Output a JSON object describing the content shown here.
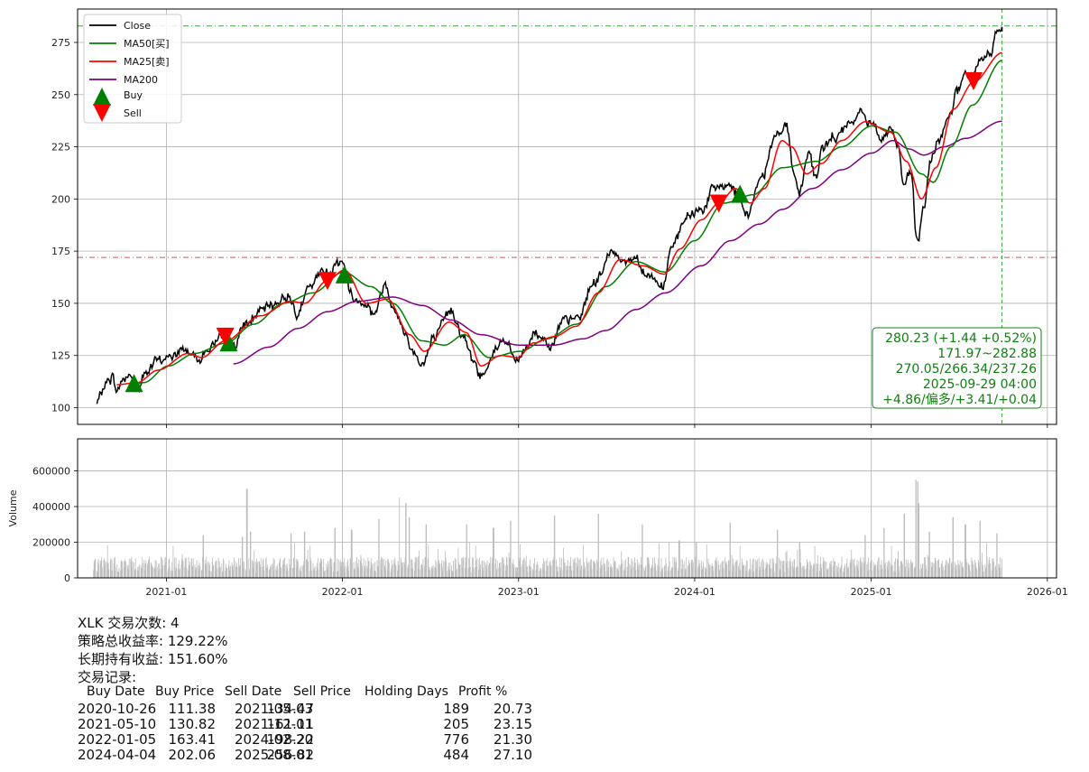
{
  "chart_data": [
    {
      "type": "line",
      "name_panel": "price",
      "x_ticks": [
        "2021-01",
        "2022-01",
        "2023-01",
        "2024-01",
        "2025-01",
        "2026-01"
      ],
      "xlim": [
        "2020-07-01",
        "2026-01-20"
      ],
      "ylim": [
        92,
        291
      ],
      "y_ticks": [
        100,
        125,
        150,
        175,
        200,
        225,
        250,
        275
      ],
      "grid": true,
      "legend_placement": "top-left",
      "legend": [
        "Close",
        "MA50[买]",
        "MA25[卖]",
        "MA200",
        "Buy",
        "Sell"
      ],
      "colors": {
        "close": "#000000",
        "ma50": "#008000",
        "ma25": "#ff0000",
        "ma200": "#800080",
        "buy": "#008000",
        "sell": "#ff0000",
        "hline_high": "#3aa83a",
        "hline_low": "#e05050"
      },
      "hlines": [
        282.88,
        171.97
      ],
      "vline": "2025-09-29",
      "close_anchors": [
        [
          "2020-08-10",
          102
        ],
        [
          "2020-08-25",
          110
        ],
        [
          "2020-09-02",
          113
        ],
        [
          "2020-09-10",
          115
        ],
        [
          "2020-09-22",
          108
        ],
        [
          "2020-10-01",
          113
        ],
        [
          "2020-10-15",
          116
        ],
        [
          "2020-11-02",
          108
        ],
        [
          "2020-11-20",
          117
        ],
        [
          "2020-12-10",
          122
        ],
        [
          "2021-01-05",
          124
        ],
        [
          "2021-02-10",
          128
        ],
        [
          "2021-03-08",
          124
        ],
        [
          "2021-04-10",
          130
        ],
        [
          "2021-05-03",
          134
        ],
        [
          "2021-05-20",
          130
        ],
        [
          "2021-06-15",
          140
        ],
        [
          "2021-07-15",
          146
        ],
        [
          "2021-08-15",
          150
        ],
        [
          "2021-09-08",
          154
        ],
        [
          "2021-09-30",
          146
        ],
        [
          "2021-10-25",
          157
        ],
        [
          "2021-11-20",
          165
        ],
        [
          "2021-12-10",
          166
        ],
        [
          "2021-12-28",
          171
        ],
        [
          "2022-01-25",
          152
        ],
        [
          "2022-02-15",
          151
        ],
        [
          "2022-03-08",
          145
        ],
        [
          "2022-03-30",
          159
        ],
        [
          "2022-04-15",
          150
        ],
        [
          "2022-05-10",
          136
        ],
        [
          "2022-05-25",
          128
        ],
        [
          "2022-06-16",
          121
        ],
        [
          "2022-07-10",
          133
        ],
        [
          "2022-08-15",
          147
        ],
        [
          "2022-09-05",
          136
        ],
        [
          "2022-09-30",
          122
        ],
        [
          "2022-10-13",
          115
        ],
        [
          "2022-11-15",
          128
        ],
        [
          "2022-12-01",
          133
        ],
        [
          "2022-12-28",
          122
        ],
        [
          "2023-01-15",
          128
        ],
        [
          "2023-02-02",
          136
        ],
        [
          "2023-03-10",
          131
        ],
        [
          "2023-04-05",
          141
        ],
        [
          "2023-05-05",
          143
        ],
        [
          "2023-06-05",
          160
        ],
        [
          "2023-07-18",
          175
        ],
        [
          "2023-08-10",
          170
        ],
        [
          "2023-09-01",
          172
        ],
        [
          "2023-09-25",
          164
        ],
        [
          "2023-10-26",
          158
        ],
        [
          "2023-11-15",
          176
        ],
        [
          "2023-12-15",
          191
        ],
        [
          "2024-01-20",
          196
        ],
        [
          "2024-02-10",
          205
        ],
        [
          "2024-03-10",
          207
        ],
        [
          "2024-04-19",
          193
        ],
        [
          "2024-05-20",
          211
        ],
        [
          "2024-06-18",
          232
        ],
        [
          "2024-07-10",
          235
        ],
        [
          "2024-07-25",
          212
        ],
        [
          "2024-08-05",
          203
        ],
        [
          "2024-08-26",
          223
        ],
        [
          "2024-09-06",
          210
        ],
        [
          "2024-09-25",
          225
        ],
        [
          "2024-10-20",
          230
        ],
        [
          "2024-11-10",
          234
        ],
        [
          "2024-12-10",
          241
        ],
        [
          "2024-12-28",
          237
        ],
        [
          "2025-01-27",
          230
        ],
        [
          "2025-02-10",
          234
        ],
        [
          "2025-02-25",
          226
        ],
        [
          "2025-03-10",
          206
        ],
        [
          "2025-03-25",
          212
        ],
        [
          "2025-04-04",
          183
        ],
        [
          "2025-04-08",
          180
        ],
        [
          "2025-04-20",
          196
        ],
        [
          "2025-05-05",
          218
        ],
        [
          "2025-05-20",
          228
        ],
        [
          "2025-06-10",
          240
        ],
        [
          "2025-06-30",
          252
        ],
        [
          "2025-07-15",
          260
        ],
        [
          "2025-08-01",
          258
        ],
        [
          "2025-08-15",
          266
        ],
        [
          "2025-09-05",
          270
        ],
        [
          "2025-09-18",
          280
        ],
        [
          "2025-09-29",
          280.23
        ]
      ],
      "ma50_anchors": [
        [
          "2020-10-15",
          110
        ],
        [
          "2020-11-15",
          112
        ],
        [
          "2021-01-05",
          120
        ],
        [
          "2021-03-01",
          126
        ],
        [
          "2021-05-05",
          131
        ],
        [
          "2021-07-01",
          140
        ],
        [
          "2021-09-01",
          150
        ],
        [
          "2021-11-01",
          155
        ],
        [
          "2022-01-03",
          165
        ],
        [
          "2022-03-01",
          158
        ],
        [
          "2022-04-15",
          150
        ],
        [
          "2022-06-15",
          132
        ],
        [
          "2022-08-01",
          130
        ],
        [
          "2022-09-10",
          135
        ],
        [
          "2022-11-01",
          124
        ],
        [
          "2023-01-05",
          127
        ],
        [
          "2023-03-01",
          133
        ],
        [
          "2023-05-01",
          140
        ],
        [
          "2023-07-01",
          158
        ],
        [
          "2023-09-01",
          170
        ],
        [
          "2023-11-01",
          165
        ],
        [
          "2024-01-01",
          180
        ],
        [
          "2024-03-01",
          198
        ],
        [
          "2024-05-01",
          202
        ],
        [
          "2024-07-01",
          215
        ],
        [
          "2024-09-10",
          218
        ],
        [
          "2024-11-01",
          225
        ],
        [
          "2025-01-02",
          235
        ],
        [
          "2025-02-20",
          232
        ],
        [
          "2025-04-15",
          212
        ],
        [
          "2025-05-10",
          208
        ],
        [
          "2025-06-15",
          225
        ],
        [
          "2025-07-30",
          245
        ],
        [
          "2025-09-29",
          266.34
        ]
      ],
      "ma25_anchors": [
        [
          "2020-09-20",
          111
        ],
        [
          "2020-11-01",
          112
        ],
        [
          "2020-12-15",
          118
        ],
        [
          "2021-02-15",
          126
        ],
        [
          "2021-03-15",
          124
        ],
        [
          "2021-05-03",
          132
        ],
        [
          "2021-07-15",
          144
        ],
        [
          "2021-09-15",
          151
        ],
        [
          "2021-10-15",
          150
        ],
        [
          "2021-12-01",
          161
        ],
        [
          "2022-01-05",
          166
        ],
        [
          "2022-02-20",
          150
        ],
        [
          "2022-04-05",
          152
        ],
        [
          "2022-05-20",
          135
        ],
        [
          "2022-06-20",
          127
        ],
        [
          "2022-08-10",
          141
        ],
        [
          "2022-09-15",
          136
        ],
        [
          "2022-10-15",
          120
        ],
        [
          "2022-11-25",
          125
        ],
        [
          "2022-12-30",
          124
        ],
        [
          "2023-02-01",
          131
        ],
        [
          "2023-03-15",
          134
        ],
        [
          "2023-05-01",
          139
        ],
        [
          "2023-06-15",
          155
        ],
        [
          "2023-07-30",
          171
        ],
        [
          "2023-09-15",
          168
        ],
        [
          "2023-10-30",
          164
        ],
        [
          "2023-12-01",
          176
        ],
        [
          "2024-01-15",
          190
        ],
        [
          "2024-02-20",
          198
        ],
        [
          "2024-03-25",
          205
        ],
        [
          "2024-04-25",
          198
        ],
        [
          "2024-05-25",
          205
        ],
        [
          "2024-06-30",
          228
        ],
        [
          "2024-07-20",
          225
        ],
        [
          "2024-08-20",
          212
        ],
        [
          "2024-09-20",
          217
        ],
        [
          "2024-11-01",
          228
        ],
        [
          "2024-12-20",
          237
        ],
        [
          "2025-02-10",
          232
        ],
        [
          "2025-03-15",
          218
        ],
        [
          "2025-04-15",
          200
        ],
        [
          "2025-05-15",
          215
        ],
        [
          "2025-06-20",
          243
        ],
        [
          "2025-08-01",
          256
        ],
        [
          "2025-09-29",
          270.05
        ]
      ],
      "ma200_anchors": [
        [
          "2021-05-20",
          121
        ],
        [
          "2021-08-01",
          129
        ],
        [
          "2021-10-01",
          138
        ],
        [
          "2021-12-01",
          146
        ],
        [
          "2022-02-01",
          151
        ],
        [
          "2022-04-15",
          153
        ],
        [
          "2022-06-15",
          149
        ],
        [
          "2022-08-15",
          142
        ],
        [
          "2022-10-15",
          135
        ],
        [
          "2023-01-01",
          130
        ],
        [
          "2023-03-15",
          130
        ],
        [
          "2023-05-15",
          133
        ],
        [
          "2023-07-01",
          137
        ],
        [
          "2023-09-01",
          147
        ],
        [
          "2023-11-01",
          155
        ],
        [
          "2024-01-15",
          168
        ],
        [
          "2024-03-15",
          180
        ],
        [
          "2024-05-15",
          188
        ],
        [
          "2024-07-01",
          195
        ],
        [
          "2024-09-01",
          205
        ],
        [
          "2024-11-01",
          214
        ],
        [
          "2025-01-02",
          222
        ],
        [
          "2025-02-15",
          228
        ],
        [
          "2025-03-20",
          224
        ],
        [
          "2025-04-20",
          221
        ],
        [
          "2025-06-01",
          225
        ],
        [
          "2025-07-15",
          229
        ],
        [
          "2025-09-29",
          237.26
        ]
      ],
      "buys": [
        [
          "2020-10-26",
          111.38
        ],
        [
          "2021-05-10",
          130.82
        ],
        [
          "2022-01-05",
          163.41
        ],
        [
          "2024-04-04",
          202.06
        ]
      ],
      "sells": [
        [
          "2021-05-03",
          134.47
        ],
        [
          "2021-12-01",
          161.11
        ],
        [
          "2024-02-20",
          198.22
        ],
        [
          "2025-08-01",
          256.82
        ]
      ],
      "annotation": [
        "280.23 (+1.44 +0.52%)",
        "171.97~282.88",
        "270.05/266.34/237.26",
        "2025-09-29 04:00",
        "+4.86/偏多/+3.41/+0.04"
      ]
    },
    {
      "type": "bar",
      "name_panel": "volume",
      "ylabel": "Volume",
      "ylim": [
        0,
        780000
      ],
      "y_ticks": [
        0,
        200000,
        400000,
        600000
      ],
      "grid": true,
      "color": "#bdbdbd",
      "range": [
        "2020-08-01",
        "2025-09-29"
      ],
      "baseline": 95000,
      "spikes": [
        [
          "2021-06-17",
          500000
        ],
        [
          "2021-06-25",
          260000
        ],
        [
          "2021-06-07",
          230000
        ],
        [
          "2021-03-19",
          240000
        ],
        [
          "2021-12-17",
          280000
        ],
        [
          "2021-09-17",
          250000
        ],
        [
          "2021-10-15",
          260000
        ],
        [
          "2022-01-20",
          270000
        ],
        [
          "2022-03-18",
          330000
        ],
        [
          "2022-04-30",
          450000
        ],
        [
          "2022-05-13",
          420000
        ],
        [
          "2022-05-20",
          340000
        ],
        [
          "2022-06-24",
          300000
        ],
        [
          "2022-09-16",
          300000
        ],
        [
          "2022-11-10",
          280000
        ],
        [
          "2022-12-16",
          320000
        ],
        [
          "2023-03-17",
          350000
        ],
        [
          "2023-06-16",
          360000
        ],
        [
          "2023-09-15",
          300000
        ],
        [
          "2023-11-30",
          210000
        ],
        [
          "2024-01-05",
          200000
        ],
        [
          "2024-03-15",
          310000
        ],
        [
          "2024-06-21",
          270000
        ],
        [
          "2024-08-05",
          200000
        ],
        [
          "2024-12-20",
          240000
        ],
        [
          "2025-01-27",
          280000
        ],
        [
          "2025-03-10",
          360000
        ],
        [
          "2025-04-04",
          550000
        ],
        [
          "2025-04-07",
          540000
        ],
        [
          "2025-04-09",
          420000
        ],
        [
          "2025-05-02",
          260000
        ],
        [
          "2025-06-20",
          340000
        ],
        [
          "2025-07-15",
          300000
        ],
        [
          "2025-08-15",
          320000
        ],
        [
          "2025-09-19",
          250000
        ]
      ]
    }
  ],
  "summary": {
    "lines": [
      "XLK 交易次数: 4",
      "策略总收益率: 129.22%",
      "长期持有收益: 151.60%",
      "交易记录:"
    ],
    "headers": [
      "Buy Date",
      "Buy Price",
      "Sell Date",
      "Sell Price",
      "Holding Days",
      "Profit %"
    ],
    "rows": [
      [
        "2020-10-26",
        "111.38",
        "2021-05-03",
        "134.47",
        "189",
        "20.73"
      ],
      [
        "2021-05-10",
        "130.82",
        "2021-12-01",
        "161.11",
        "205",
        "23.15"
      ],
      [
        "2022-01-05",
        "163.41",
        "2024-02-20",
        "198.22",
        "776",
        "21.30"
      ],
      [
        "2024-04-04",
        "202.06",
        "2025-08-01",
        "256.82",
        "484",
        "27.10"
      ]
    ]
  }
}
